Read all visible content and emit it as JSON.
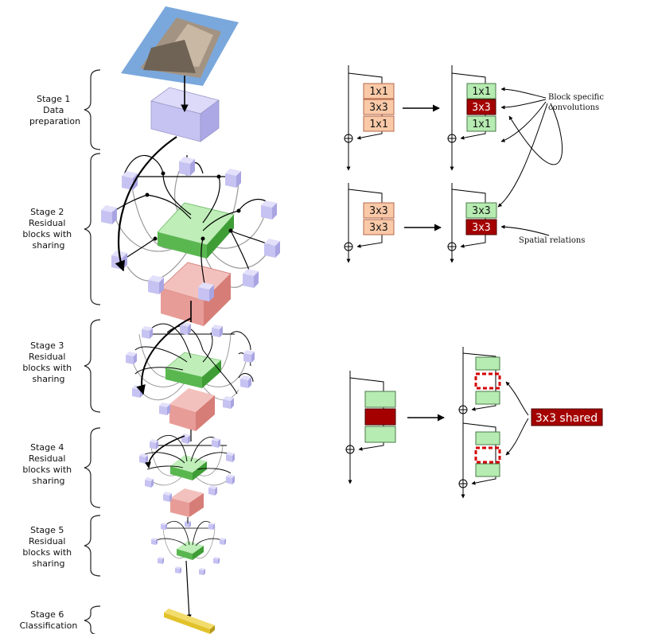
{
  "stages": [
    {
      "lines": [
        "Stage 1",
        "Data",
        "preparation"
      ]
    },
    {
      "lines": [
        "Stage 2",
        "Residual",
        "blocks with",
        "sharing"
      ]
    },
    {
      "lines": [
        "Stage 3",
        "Residual",
        "blocks with",
        "sharing"
      ]
    },
    {
      "lines": [
        "Stage 4",
        "Residual",
        "blocks with",
        "sharing"
      ]
    },
    {
      "lines": [
        "Stage 5",
        "Residual",
        "blocks with",
        "sharing"
      ]
    },
    {
      "lines": [
        "Stage 6",
        "Classification"
      ]
    }
  ],
  "blocks": {
    "conv1x1": "1x1",
    "conv3x3": "3x3"
  },
  "annotations": {
    "block_specific": [
      "Block specific",
      "convolutions"
    ],
    "spatial_relations": "Spatial relations",
    "shared_label": "3x3 shared"
  },
  "colors": {
    "peach": "#f9c9a8",
    "peach_border": "#b5684a",
    "light_green": "#b6ebb1",
    "green_border": "#4a7a49",
    "dark_red": "#a40000",
    "lavender": "#c6c3f2",
    "green_plate": "#8bdc82",
    "red_plate": "#e89c97",
    "yellow": "#e2c22b"
  }
}
